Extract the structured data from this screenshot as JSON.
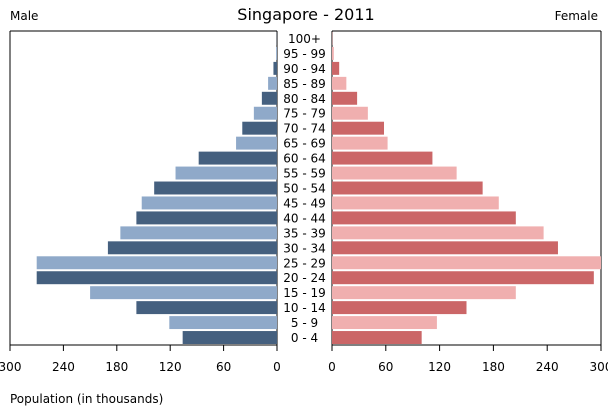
{
  "chart_data": {
    "type": "bar",
    "orientation": "horizontal-population-pyramid",
    "title": "Singapore - 2011",
    "left_label": "Male",
    "right_label": "Female",
    "xlabel": "Population (in thousands)",
    "categories": [
      "100+",
      "95 - 99",
      "90 - 94",
      "85 - 89",
      "80 - 84",
      "75 - 79",
      "70 - 74",
      "65 - 69",
      "60 - 64",
      "55 - 59",
      "50 - 54",
      "45 - 49",
      "40 - 44",
      "35 - 39",
      "30 - 34",
      "25 - 29",
      "20 - 24",
      "15 - 19",
      "10 - 14",
      "5 - 9",
      "0 - 4"
    ],
    "series": [
      {
        "name": "Male",
        "values": [
          0.2,
          1,
          4,
          10,
          17,
          26,
          39,
          46,
          88,
          114,
          138,
          152,
          158,
          176,
          190,
          270,
          270,
          210,
          158,
          121,
          106
        ]
      },
      {
        "name": "Female",
        "values": [
          0.3,
          2,
          8,
          16,
          28,
          40,
          58,
          62,
          112,
          139,
          168,
          186,
          205,
          236,
          252,
          300,
          292,
          205,
          150,
          117,
          100
        ]
      }
    ],
    "male_xlim": [
      0,
      300
    ],
    "female_xlim": [
      0,
      300
    ],
    "male_ticks": [
      "300",
      "240",
      "180",
      "120",
      "60",
      "0"
    ],
    "female_ticks": [
      "0",
      "60",
      "120",
      "180",
      "240",
      "300"
    ],
    "grid": false,
    "colors": {
      "male_dark": "#45607f",
      "male_light": "#8fa9c9",
      "female_dark": "#cb6667",
      "female_light": "#f0afaf",
      "axis": "#000000"
    }
  }
}
